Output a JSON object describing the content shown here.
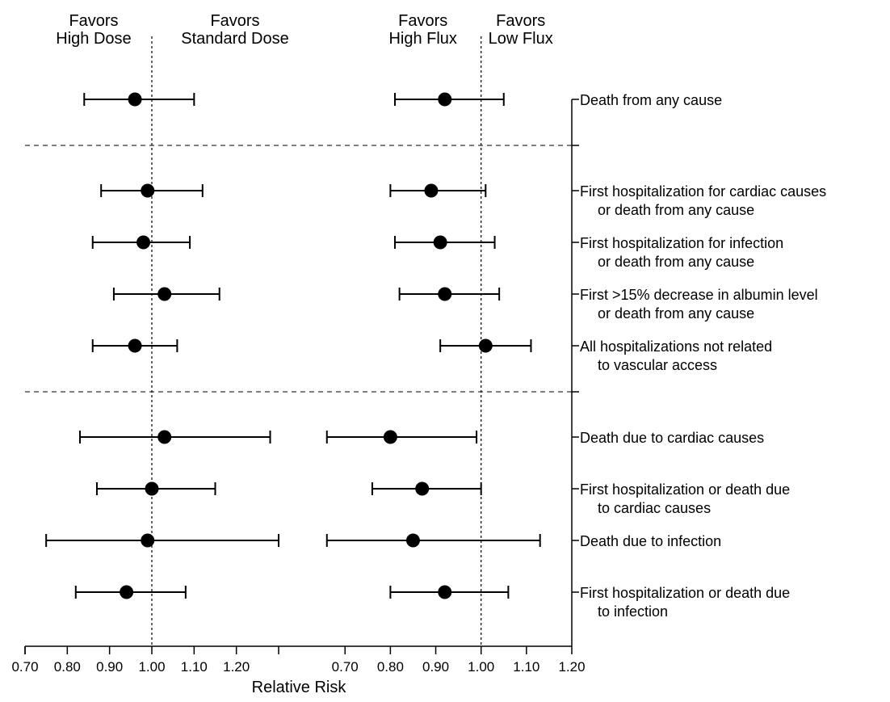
{
  "chart_data": {
    "type": "forest",
    "xlabel": "Relative Risk",
    "ylim_note": "",
    "panels": [
      {
        "header_left": [
          "Favors",
          "High Dose"
        ],
        "header_right": [
          "Favors",
          "Standard Dose"
        ],
        "xlim": [
          0.7,
          1.3
        ],
        "reference": 1.0,
        "ticks": [
          "0.70",
          "0.80",
          "0.90",
          "1.00",
          "1.10",
          "1.20"
        ],
        "points": [
          {
            "est": 0.96,
            "lo": 0.84,
            "hi": 1.1
          },
          {
            "est": 0.99,
            "lo": 0.88,
            "hi": 1.12
          },
          {
            "est": 0.98,
            "lo": 0.86,
            "hi": 1.09
          },
          {
            "est": 1.03,
            "lo": 0.91,
            "hi": 1.16
          },
          {
            "est": 0.96,
            "lo": 0.86,
            "hi": 1.06
          },
          {
            "est": 1.03,
            "lo": 0.83,
            "hi": 1.28
          },
          {
            "est": 1.0,
            "lo": 0.87,
            "hi": 1.15
          },
          {
            "est": 0.99,
            "lo": 0.75,
            "hi": 1.3
          },
          {
            "est": 0.94,
            "lo": 0.82,
            "hi": 1.08
          }
        ]
      },
      {
        "header_left": [
          "Favors",
          "High Flux"
        ],
        "header_right": [
          "Favors",
          "Low Flux"
        ],
        "xlim": [
          0.55,
          1.2
        ],
        "reference": 1.0,
        "ticks": [
          "0.70",
          "0.80",
          "0.90",
          "1.00",
          "1.10",
          "1.20"
        ],
        "points": [
          {
            "est": 0.92,
            "lo": 0.81,
            "hi": 1.05
          },
          {
            "est": 0.89,
            "lo": 0.8,
            "hi": 1.01
          },
          {
            "est": 0.91,
            "lo": 0.81,
            "hi": 1.03
          },
          {
            "est": 0.92,
            "lo": 0.82,
            "hi": 1.04
          },
          {
            "est": 1.01,
            "lo": 0.91,
            "hi": 1.11
          },
          {
            "est": 0.8,
            "lo": 0.66,
            "hi": 0.99
          },
          {
            "est": 0.87,
            "lo": 0.76,
            "hi": 1.0
          },
          {
            "est": 0.85,
            "lo": 0.66,
            "hi": 1.13
          },
          {
            "est": 0.92,
            "lo": 0.8,
            "hi": 1.06
          }
        ]
      }
    ],
    "outcomes": [
      [
        "Death from any cause"
      ],
      [
        "First hospitalization for cardiac causes",
        "or death from any cause"
      ],
      [
        "First hospitalization for infection",
        "or death from any cause"
      ],
      [
        "First >15% decrease in albumin level",
        "or death from any cause"
      ],
      [
        "All hospitalizations not related",
        "to vascular access"
      ],
      [
        "Death due to cardiac causes"
      ],
      [
        "First hospitalization or death due",
        "to cardiac causes"
      ],
      [
        "Death due to infection"
      ],
      [
        "First hospitalization or death due",
        "to infection"
      ]
    ],
    "group_separators_after": [
      0,
      4
    ],
    "reference_style": "dotted",
    "separator_style": "dashed"
  }
}
